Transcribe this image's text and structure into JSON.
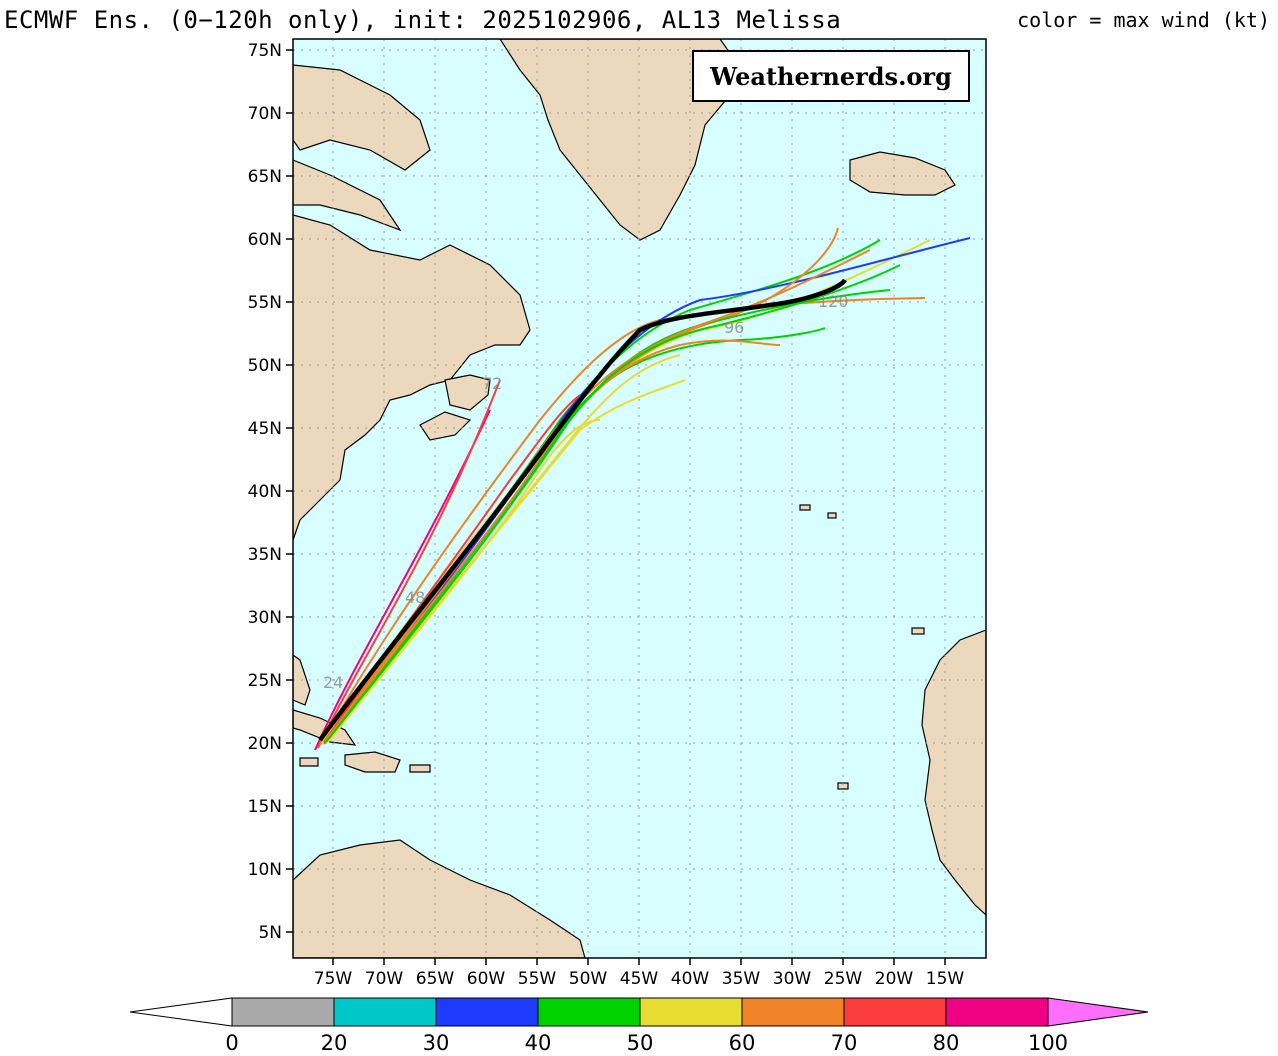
{
  "header": {
    "title": "ECMWF Ens. (0−120h only), init: 2025102906, AL13 Melissa",
    "color_note": "color = max wind (kt)"
  },
  "watermark": {
    "text": "Weathernerds.org"
  },
  "map": {
    "lat_labels": [
      "75N",
      "70N",
      "65N",
      "60N",
      "55N",
      "50N",
      "45N",
      "40N",
      "35N",
      "30N",
      "25N",
      "20N",
      "15N",
      "10N",
      "5N"
    ],
    "lon_labels": [
      "75W",
      "70W",
      "65W",
      "60W",
      "55W",
      "50W",
      "45W",
      "40W",
      "35W",
      "30W",
      "25W",
      "20W",
      "15W"
    ],
    "lat_range": [
      3,
      76
    ],
    "lon_range": [
      -79,
      -11
    ],
    "ocean_color": "#d8ffff",
    "land_color": "#ecd9bd",
    "grid": "dotted"
  },
  "colorbar": {
    "labels": [
      "0",
      "20",
      "30",
      "40",
      "50",
      "60",
      "70",
      "80",
      "100"
    ],
    "colors": [
      "#a9a9a9",
      "#00c8c8",
      "#1e3cff",
      "#00d200",
      "#e6dc32",
      "#f08228",
      "#fa3c3c",
      "#f00082",
      "#ff6eff"
    ]
  },
  "track_labels": {
    "hours": [
      "72",
      "96",
      "120",
      "24",
      "48"
    ]
  }
}
